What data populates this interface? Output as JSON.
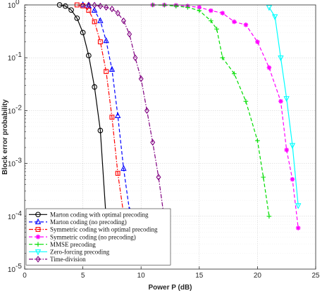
{
  "chart_data": {
    "type": "line",
    "xlabel": "Power P (dB)",
    "ylabel": "Block error probability",
    "xlim": [
      0,
      25
    ],
    "ylim": [
      1e-05,
      1
    ],
    "yscale": "log",
    "grid": true,
    "legend_position": "bottom-left",
    "x_ticks": [
      {
        "value": 0,
        "label": "0"
      },
      {
        "value": 5,
        "label": "5"
      },
      {
        "value": 10,
        "label": "10"
      },
      {
        "value": 15,
        "label": "15"
      },
      {
        "value": 20,
        "label": "20"
      },
      {
        "value": 25,
        "label": "25"
      }
    ],
    "y_ticks": [
      {
        "value": 1,
        "base": "10",
        "exp": "0"
      },
      {
        "value": 0.1,
        "base": "10",
        "exp": "-1"
      },
      {
        "value": 0.01,
        "base": "10",
        "exp": "-2"
      },
      {
        "value": 0.001,
        "base": "10",
        "exp": "-3"
      },
      {
        "value": 0.0001,
        "base": "10",
        "exp": "-4"
      },
      {
        "value": 1e-05,
        "base": "10",
        "exp": "-5"
      }
    ],
    "series": [
      {
        "name": "Marton coding with optimal precoding",
        "color": "#000000",
        "dash": "solid",
        "marker": "circle",
        "x": [
          3.0,
          3.5,
          4.0,
          4.5,
          5.0,
          5.5,
          6.0,
          6.5,
          7.0
        ],
        "y": [
          1.0,
          0.95,
          0.8,
          0.56,
          0.3,
          0.11,
          0.028,
          0.0042,
          9e-05
        ]
      },
      {
        "name": "Marton coding (no precoding)",
        "color": "#0000ff",
        "dash": "dashed",
        "marker": "triangle-up",
        "x": [
          5.0,
          5.5,
          6.0,
          6.5,
          7.0,
          7.5,
          8.0,
          8.5,
          9.0
        ],
        "y": [
          1.0,
          0.95,
          0.79,
          0.5,
          0.21,
          0.06,
          0.008,
          0.0008,
          0.00013
        ]
      },
      {
        "name": "Symmetric coding with optimal precoding",
        "color": "#ff0000",
        "dash": "dashdot",
        "marker": "square",
        "x": [
          4.5,
          5.0,
          5.5,
          6.0,
          6.5,
          7.0,
          7.5,
          8.0,
          8.5
        ],
        "y": [
          1.0,
          0.96,
          0.79,
          0.48,
          0.2,
          0.055,
          0.0075,
          0.00065,
          0.00011
        ]
      },
      {
        "name": "Symmetric coding (no precoding)",
        "color": "#ff00ff",
        "dash": "dashed",
        "marker": "star",
        "x": [
          11.0,
          12.0,
          13.0,
          14.0,
          15.0,
          16.0,
          17.0,
          18.0,
          19.0,
          20.0,
          21.0,
          22.0,
          22.5,
          23.0,
          23.5
        ],
        "y": [
          1.0,
          1.0,
          0.98,
          0.95,
          0.9,
          0.78,
          0.7,
          0.48,
          0.42,
          0.2,
          0.065,
          0.015,
          0.0018,
          0.0005,
          6e-05
        ]
      },
      {
        "name": "MMSE precoding",
        "color": "#00dd00",
        "dash": "dashed",
        "marker": "plus",
        "x": [
          11.0,
          12.0,
          13.0,
          14.0,
          15.0,
          16.0,
          16.5,
          17.0,
          18.0,
          19.0,
          20.0,
          20.5,
          21.0
        ],
        "y": [
          1.0,
          0.99,
          0.95,
          0.9,
          0.78,
          0.5,
          0.35,
          0.1,
          0.05,
          0.015,
          0.0027,
          0.00055,
          0.0001
        ]
      },
      {
        "name": "Zero-forcing precoding",
        "color": "#00ffff",
        "dash": "solid",
        "marker": "triangle-down",
        "x": [
          21.0,
          21.5,
          22.0,
          22.5,
          23.0,
          23.5
        ],
        "y": [
          0.9,
          0.6,
          0.1,
          0.017,
          0.0022,
          0.00016
        ]
      },
      {
        "name": "Time-division",
        "color": "#800080",
        "dash": "dashdot",
        "marker": "diamond",
        "x": [
          5.5,
          6.0,
          6.5,
          7.0,
          7.5,
          8.0,
          8.5,
          9.0,
          9.5,
          10.0,
          10.5,
          11.0,
          11.5,
          12.0
        ],
        "y": [
          1.0,
          0.99,
          0.95,
          0.9,
          0.84,
          0.7,
          0.5,
          0.28,
          0.1,
          0.04,
          0.01,
          0.0025,
          0.00055,
          9e-05
        ]
      }
    ]
  }
}
